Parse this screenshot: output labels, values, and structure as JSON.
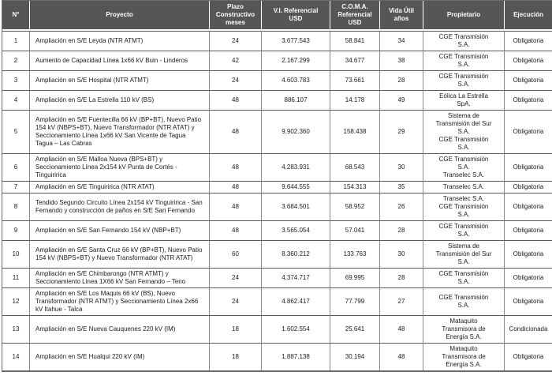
{
  "table": {
    "headers": [
      "N°",
      "Proyecto",
      "Plazo\nConstructivo\nmeses",
      "V.I. Referencial\nUSD",
      "C.O.M.A.\nReferencial\nUSD",
      "Vida Útil\naños",
      "Propietario",
      "Ejecución"
    ],
    "rows": [
      {
        "num": "1",
        "proyecto": "Ampliación en S/E Leyda (NTR ATMT)",
        "plazo": "24",
        "vi_referencial": "3.677.543",
        "coma_referencial": "58.841",
        "vida_util": "34",
        "propietario": "CGE Transmisión\nS.A.",
        "ejecucion": "Obligatoria"
      },
      {
        "num": "2",
        "proyecto": "Aumento de Capacidad Línea 1x66 kV Buin - Linderos",
        "plazo": "42",
        "vi_referencial": "2.167.299",
        "coma_referencial": "34.677",
        "vida_util": "38",
        "propietario": "CGE Transmisión\nS.A.",
        "ejecucion": "Obligatoria"
      },
      {
        "num": "3",
        "proyecto": "Ampliación en S/E Hospital (NTR ATMT)",
        "plazo": "24",
        "vi_referencial": "4.603.783",
        "coma_referencial": "73.661",
        "vida_util": "28",
        "propietario": "CGE Transmisión\nS.A.",
        "ejecucion": "Obligatoria"
      },
      {
        "num": "4",
        "proyecto": "Ampliación en S/E La Estrella 110 kV (BS)",
        "plazo": "48",
        "vi_referencial": "886.107",
        "coma_referencial": "14.178",
        "vida_util": "49",
        "propietario": "Eólica La Estrella\nSpA.",
        "ejecucion": "Obligatoria"
      },
      {
        "num": "5",
        "proyecto": "Ampliación en S/E Fuentecilla 66 kV (BP+BT), Nuevo Patio 154 kV (NBPS+BT), Nuevo Transformador (NTR ATAT) y Seccionamiento Línea 1x66 kV San Vicente de Tagua Tagua – Las Cabras",
        "plazo": "48",
        "vi_referencial": "9.902.360",
        "coma_referencial": "158.438",
        "vida_util": "29",
        "propietario": "Sistema de\nTransmisión del Sur\nS.A.\nCGE Transmisión\nS.A.",
        "ejecucion": "Obligatoria"
      },
      {
        "num": "6",
        "proyecto": "Ampliación en S/E Malloa Nueva (BPS+BT) y Seccionamiento Línea 2x154 kV Punta de Cortés - Tinguiririca",
        "plazo": "48",
        "vi_referencial": "4.283.931",
        "coma_referencial": "68.543",
        "vida_util": "30",
        "propietario": "CGE Transmisión\nS.A.\nTranselec S.A.",
        "ejecucion": "Obligatoria"
      },
      {
        "num": "7",
        "proyecto": "Ampliación en S/E Tinguiririca (NTR ATAT)",
        "plazo": "48",
        "vi_referencial": "9.644.555",
        "coma_referencial": "154.313",
        "vida_util": "35",
        "propietario": "Transelec S.A.",
        "ejecucion": "Obligatoria"
      },
      {
        "num": "8",
        "proyecto": "Tendido Segundo Circuito Línea 2x154 kV Tinguiririca - San Fernando y construcción de paños en S/E San Fernando",
        "plazo": "48",
        "vi_referencial": "3.684.501",
        "coma_referencial": "58.952",
        "vida_util": "26",
        "propietario": "Transelec S.A.\nCGE Transmisión\nS.A.",
        "ejecucion": "Obligatoria"
      },
      {
        "num": "9",
        "proyecto": "Ampliación en S/E San Fernando 154 kV (NBP+BT)",
        "plazo": "48",
        "vi_referencial": "3.565.054",
        "coma_referencial": "57.041",
        "vida_util": "28",
        "propietario": "CGE Transmisión\nS.A.",
        "ejecucion": "Obligatoria"
      },
      {
        "num": "10",
        "proyecto": "Ampliación en S/E Santa Cruz 66 kV (BP+BT), Nuevo Patio 154 kV (NBPS+BT) y Nuevo Transformador (NTR ATAT)",
        "plazo": "60",
        "vi_referencial": "8.360.212",
        "coma_referencial": "133.763",
        "vida_util": "30",
        "propietario": "Sistema de\nTransmisión del Sur\nS.A.",
        "ejecucion": "Obligatoria"
      },
      {
        "num": "11",
        "proyecto": "Ampliación en S/E Chimbarongo (NTR ATMT) y Seccionamiento Linea 1X66 kV San Fernando – Teno",
        "plazo": "24",
        "vi_referencial": "4.374.717",
        "coma_referencial": "69.995",
        "vida_util": "28",
        "propietario": "CGE Transmisión\nS.A.",
        "ejecucion": "Obligatoria"
      },
      {
        "num": "12",
        "proyecto": "Ampliación en S/E Los Maquis 66 kV (BS), Nuevo Transformador (NTR ATMT) y Seccionamiento Línea 2x66 kV Itahue - Talca",
        "plazo": "24",
        "vi_referencial": "4.862.417",
        "coma_referencial": "77.799",
        "vida_util": "27",
        "propietario": "CGE Transmisión\nS.A.",
        "ejecucion": "Obligatoria"
      },
      {
        "num": "13",
        "proyecto": "Ampliación en S/E Nueva Cauquenes 220 kV (IM)",
        "plazo": "18",
        "vi_referencial": "1.602.554",
        "coma_referencial": "25.641",
        "vida_util": "48",
        "propietario": "Mataquito\nTransmisora de\nEnergía S.A.",
        "ejecucion": "Condicionada"
      },
      {
        "num": "14",
        "proyecto": "Ampliación en S/E Hualqui 220 kV (IM)",
        "plazo": "18",
        "vi_referencial": "1.887.138",
        "coma_referencial": "30.194",
        "vida_util": "48",
        "propietario": "Mataquito\nTransmisora de\nEnergía S.A.",
        "ejecucion": "Obligatoria"
      }
    ]
  }
}
